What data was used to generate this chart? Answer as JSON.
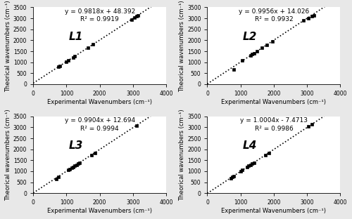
{
  "subplots": [
    {
      "label": "L1",
      "equation": "y = 0.9818x + 48.392",
      "r2": "R² = 0.9919",
      "slope": 0.9818,
      "intercept": 48.392,
      "x_data": [
        750,
        800,
        1000,
        1050,
        1200,
        1250,
        1650,
        1800,
        2950,
        3050,
        3100,
        3150
      ],
      "y_data": [
        785,
        830,
        1030,
        1080,
        1225,
        1270,
        1670,
        1815,
        2950,
        3040,
        3090,
        3140
      ]
    },
    {
      "label": "L2",
      "equation": "y = 0.9956x + 14.026",
      "r2": "R² = 0.9932",
      "slope": 0.9956,
      "intercept": 14.026,
      "x_data": [
        800,
        1050,
        1300,
        1350,
        1400,
        1500,
        1650,
        1800,
        1950,
        2900,
        3050,
        3150,
        3200
      ],
      "y_data": [
        660,
        1100,
        1310,
        1360,
        1395,
        1500,
        1650,
        1795,
        1950,
        2895,
        2990,
        3090,
        3140
      ]
    },
    {
      "label": "L3",
      "equation": "y = 0.9904x + 12.694",
      "r2": "R² = 0.9994",
      "slope": 0.9904,
      "intercept": 12.694,
      "x_data": [
        700,
        750,
        1050,
        1100,
        1150,
        1200,
        1250,
        1300,
        1350,
        1400,
        1750,
        1850,
        3100
      ],
      "y_data": [
        660,
        730,
        1055,
        1100,
        1150,
        1200,
        1250,
        1290,
        1340,
        1390,
        1745,
        1845,
        3080
      ]
    },
    {
      "label": "L4",
      "equation": "y = 1.0004x - 7.4713",
      "r2": "R² = 0.9986",
      "slope": 1.0004,
      "intercept": -7.4713,
      "x_data": [
        700,
        750,
        800,
        1000,
        1050,
        1200,
        1250,
        1300,
        1350,
        1400,
        1750,
        1850,
        3050,
        3150
      ],
      "y_data": [
        680,
        730,
        785,
        985,
        1050,
        1195,
        1245,
        1295,
        1345,
        1395,
        1745,
        1845,
        3050,
        3145
      ]
    }
  ],
  "xlim": [
    0,
    4000
  ],
  "ylim": [
    0,
    3500
  ],
  "xticks": [
    0,
    1000,
    2000,
    3000,
    4000
  ],
  "yticks": [
    0,
    500,
    1000,
    1500,
    2000,
    2500,
    3000,
    3500
  ],
  "xlabel": "Experimental Wavenumbers (cm⁻¹)",
  "ylabel": "Theorical wavenumbers (cm⁻¹)",
  "marker": "s",
  "marker_color": "black",
  "marker_size": 3.5,
  "line_style": ":",
  "line_color": "black",
  "line_width": 1.2,
  "label_fontsize": 11,
  "label_fontstyle": "italic",
  "label_fontweight": "bold",
  "eq_fontsize": 6.5,
  "axis_fontsize": 6.0,
  "tick_fontsize": 5.5,
  "bg_color": "#f0f0f0"
}
